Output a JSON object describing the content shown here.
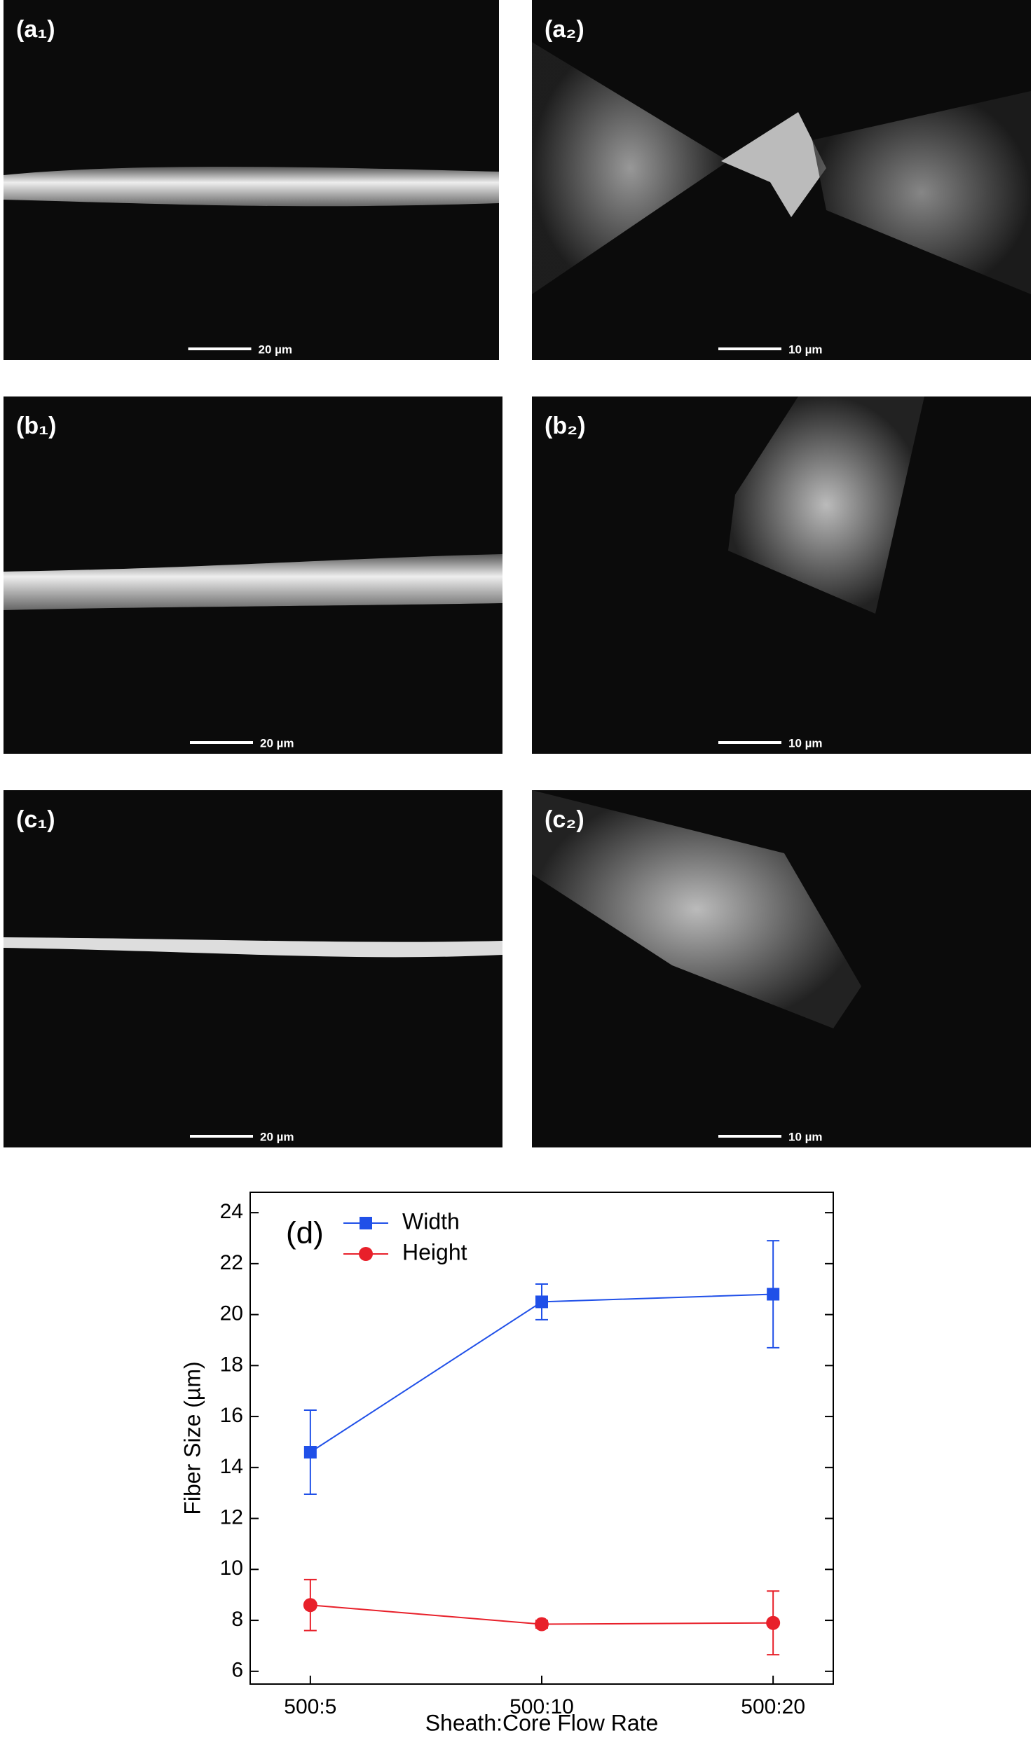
{
  "panels": [
    {
      "label": "(a₁)",
      "scale_bar": "20 µm"
    },
    {
      "label": "(a₂)",
      "scale_bar": "10 µm"
    },
    {
      "label": "(b₁)",
      "scale_bar": "20 µm"
    },
    {
      "label": "(b₂)",
      "scale_bar": "10 µm"
    },
    {
      "label": "(c₁)",
      "scale_bar": "20 µm"
    },
    {
      "label": "(c₂)",
      "scale_bar": "10 µm"
    }
  ],
  "chart_data": {
    "type": "line",
    "annotation": "(d)",
    "x_label": "Sheath:Core Flow Rate",
    "y_label": "Fiber Size (µm)",
    "categories": [
      "500:5",
      "500:10",
      "500:20"
    ],
    "series": [
      {
        "name": "Width",
        "color": "#2050e8",
        "marker": "square",
        "values": [
          14.6,
          20.5,
          20.8
        ],
        "errors": [
          1.65,
          0.7,
          2.1
        ]
      },
      {
        "name": "Height",
        "color": "#e8202a",
        "marker": "circle",
        "values": [
          8.6,
          7.85,
          7.9
        ],
        "errors": [
          1.0,
          0.15,
          1.25
        ]
      }
    ],
    "ylim": [
      5.5,
      24.8
    ],
    "yticks": [
      6,
      8,
      10,
      12,
      14,
      16,
      18,
      20,
      22,
      24
    ],
    "legend": "upper left"
  }
}
